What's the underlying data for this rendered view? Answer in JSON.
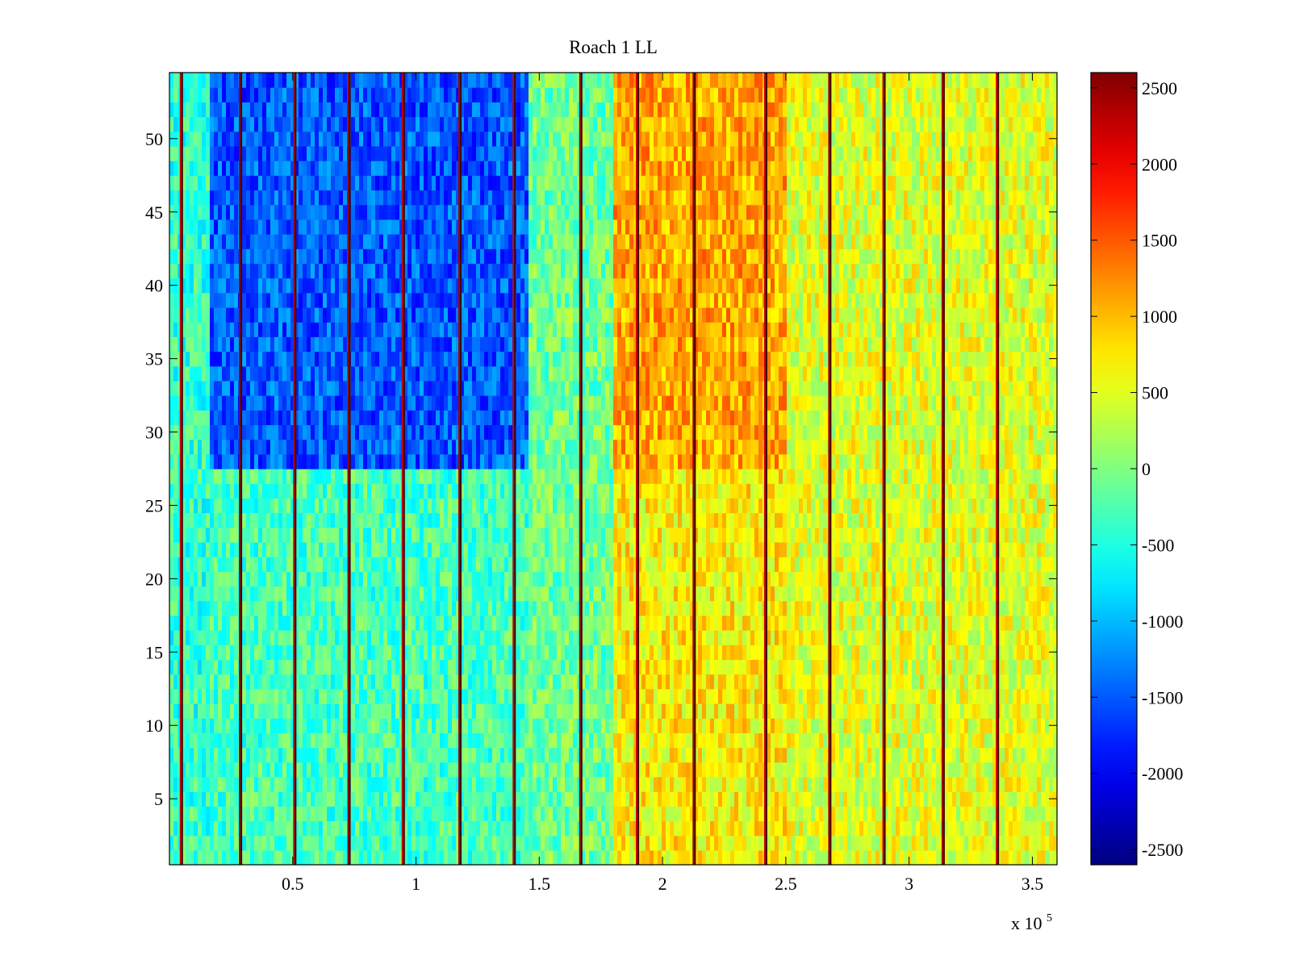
{
  "chart_data": {
    "type": "heatmap",
    "title": "Roach 1 LL",
    "xlabel": "",
    "ylabel": "",
    "x_multiplier": "x 10",
    "x_multiplier_exponent": "5",
    "xlim": [
      0,
      360000
    ],
    "ylim": [
      0.5,
      54.5
    ],
    "x_ticks": [
      0.5,
      1,
      1.5,
      2,
      2.5,
      3,
      3.5
    ],
    "x_tick_labels": [
      "0.5",
      "1",
      "1.5",
      "2",
      "2.5",
      "3",
      "3.5"
    ],
    "y_ticks": [
      5,
      10,
      15,
      20,
      25,
      30,
      35,
      40,
      45,
      50
    ],
    "y_tick_labels": [
      "5",
      "10",
      "15",
      "20",
      "25",
      "30",
      "35",
      "40",
      "45",
      "50"
    ],
    "colorbar": {
      "colormap": "jet",
      "clim": [
        -2600,
        2600
      ],
      "ticks": [
        2500,
        2000,
        1500,
        1000,
        500,
        0,
        -500,
        -1000,
        -1500,
        -2000,
        -2500
      ],
      "tick_labels": [
        "2500",
        "2000",
        "1500",
        "1000",
        "500",
        "0",
        "-500",
        "-1000",
        "-1500",
        "-2000",
        "-2500"
      ]
    },
    "approx_regions": [
      {
        "x_range": [
          0,
          17000
        ],
        "y_range": [
          1,
          54
        ],
        "value": -400
      },
      {
        "x_range": [
          17000,
          145000
        ],
        "y_range": [
          28,
          54
        ],
        "value": -1500
      },
      {
        "x_range": [
          17000,
          145000
        ],
        "y_range": [
          1,
          27
        ],
        "value": -300
      },
      {
        "x_range": [
          145000,
          180000
        ],
        "y_range": [
          1,
          54
        ],
        "value": -100
      },
      {
        "x_range": [
          180000,
          250000
        ],
        "y_range": [
          28,
          54
        ],
        "value": 1100
      },
      {
        "x_range": [
          180000,
          250000
        ],
        "y_range": [
          1,
          27
        ],
        "value": 700
      },
      {
        "x_range": [
          250000,
          360000
        ],
        "y_range": [
          1,
          54
        ],
        "value": 500
      }
    ],
    "vertical_stripe_x": [
      5000,
      29000,
      51000,
      73000,
      95000,
      118000,
      140000,
      167000,
      190000,
      213000,
      242000,
      268000,
      290000,
      314000,
      336000
    ],
    "grid": false,
    "legend": "colorbar-right"
  }
}
